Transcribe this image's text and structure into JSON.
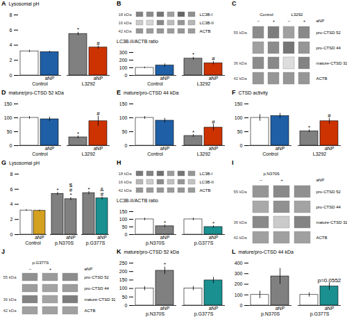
{
  "chart_data": [
    {
      "type": "bar",
      "title": "A",
      "ylabel": "Lysosomal pH",
      "categories": [
        "Control",
        "L3292"
      ],
      "series": [
        {
          "values": [
            3.2,
            5.5
          ],
          "errors": [
            0.15,
            0.22
          ],
          "colors": [
            "#ffffff",
            "#808080"
          ]
        },
        {
          "name": "aNP",
          "values": [
            3.1,
            3.7
          ],
          "errors": [
            0.12,
            0.22
          ],
          "colors": [
            "#1f5fa6",
            "#cc3300"
          ]
        }
      ],
      "ylim": [
        0,
        8
      ],
      "yticks": [
        0,
        2,
        4,
        6,
        8
      ],
      "annotations": [
        {
          "text": "*",
          "category": "L3292",
          "series": 0
        },
        {
          "text": "#",
          "category": "L3292",
          "series": 1
        }
      ]
    },
    {
      "type": "heatmap",
      "title": "B",
      "categories": [
        null,
        null,
        null,
        null,
        null,
        null
      ],
      "rows": [
        "LC3B-I",
        "LC3B-II",
        "ACTB"
      ],
      "row_sizes": [
        "18 kDa",
        "16 kDa",
        "42 kDa"
      ],
      "cells": [
        [
          0.65,
          0.6,
          0.72,
          0.5,
          0.8,
          0.58
        ],
        [
          0.28,
          0.22,
          0.62,
          0.35,
          0.55,
          0.38
        ],
        [
          0.55,
          0.52,
          0.55,
          0.52,
          0.55,
          0.52
        ]
      ],
      "zlim": [
        0,
        1
      ]
    },
    {
      "type": "bar",
      "ylabel": "LC3B-II/ACTB ratio",
      "categories": [
        "Control",
        "L3292"
      ],
      "series": [
        {
          "values": [
            100,
            220
          ],
          "errors": [
            10,
            18
          ],
          "colors": [
            "#ffffff",
            "#808080"
          ]
        },
        {
          "name": "aNP",
          "values": [
            130,
            160
          ],
          "errors": [
            22,
            22
          ],
          "colors": [
            "#1f5fa6",
            "#cc3300"
          ]
        }
      ],
      "ylim": [
        0,
        300
      ],
      "yticks": [
        0,
        100,
        200,
        300
      ],
      "annotations": [
        {
          "text": "*",
          "category": "L3292",
          "series": 0
        },
        {
          "text": "#",
          "category": "L3292",
          "series": 1
        }
      ]
    },
    {
      "type": "heatmap",
      "title": "C",
      "categories": [
        "–",
        "+",
        "–",
        "+"
      ],
      "xlabel": "aNP",
      "groups": [
        {
          "label": "Control",
          "lanes": 2
        },
        {
          "label": "L3292",
          "lanes": 2
        }
      ],
      "rows": [
        "pro-CTSD 52",
        "pro-CTSD 44",
        "mature-CTSD 32",
        "ACTB"
      ],
      "row_sizes": [
        "55 kDa",
        null,
        "36 kDa",
        "42 kDa"
      ],
      "cells": [
        [
          0.6,
          0.68,
          0.5,
          0.62
        ],
        [
          0.5,
          0.6,
          0.72,
          0.55
        ],
        [
          0.6,
          0.62,
          0.18,
          0.65
        ],
        [
          0.55,
          0.55,
          0.55,
          0.55
        ]
      ],
      "zlim": [
        0,
        1
      ]
    },
    {
      "type": "bar",
      "title": "D",
      "ylabel": "mature/pro-CTSD 52 kDa",
      "categories": [
        "Control",
        "L3292"
      ],
      "series": [
        {
          "values": [
            100,
            30
          ],
          "errors": [
            5,
            5
          ],
          "colors": [
            "#ffffff",
            "#808080"
          ]
        },
        {
          "name": "aNP",
          "values": [
            95,
            88
          ],
          "errors": [
            8,
            18
          ],
          "colors": [
            "#1f5fa6",
            "#cc3300"
          ]
        }
      ],
      "ylim": [
        0,
        150
      ],
      "yticks": [
        0,
        50,
        100,
        150
      ],
      "annotations": [
        {
          "text": "*",
          "category": "L3292",
          "series": 0
        },
        {
          "text": "#",
          "category": "L3292",
          "series": 1
        }
      ]
    },
    {
      "type": "bar",
      "title": "E",
      "ylabel": "mature/pro-CTSD 44 kDa",
      "categories": [
        "Control",
        "L3292"
      ],
      "series": [
        {
          "values": [
            100,
            35
          ],
          "errors": [
            5,
            5
          ],
          "colors": [
            "#ffffff",
            "#808080"
          ]
        },
        {
          "name": "aNP",
          "values": [
            90,
            65
          ],
          "errors": [
            8,
            12
          ],
          "colors": [
            "#1f5fa6",
            "#cc3300"
          ]
        }
      ],
      "ylim": [
        0,
        150
      ],
      "yticks": [
        0,
        50,
        100,
        150
      ],
      "annotations": [
        {
          "text": "*",
          "category": "L3292",
          "series": 0
        },
        {
          "text": "#",
          "category": "L3292",
          "series": 1
        }
      ]
    },
    {
      "type": "bar",
      "title": "F",
      "ylabel": "CTSD activity",
      "categories": [
        "Control",
        "L3292"
      ],
      "series": [
        {
          "values": [
            100,
            52
          ],
          "errors": [
            12,
            5
          ],
          "colors": [
            "#ffffff",
            "#808080"
          ]
        },
        {
          "name": "aNP",
          "values": [
            107,
            88
          ],
          "errors": [
            9,
            10
          ],
          "colors": [
            "#1f5fa6",
            "#cc3300"
          ]
        }
      ],
      "ylim": [
        0,
        150
      ],
      "yticks": [
        0,
        50,
        100,
        150
      ],
      "annotations": [
        {
          "text": "*",
          "category": "L3292",
          "series": 0
        },
        {
          "text": "#",
          "category": "L3292",
          "series": 1
        }
      ]
    },
    {
      "type": "bar",
      "title": "G",
      "ylabel": "Lysosomal pH",
      "categories": [
        "Control",
        "p.N370S",
        "p.G377S"
      ],
      "series": [
        {
          "values": [
            3.2,
            5.4,
            5.5
          ],
          "errors": [
            0.1,
            0.2,
            0.2
          ],
          "colors": [
            "#ffffff",
            "#808080",
            "#808080"
          ]
        },
        {
          "name": "aNP",
          "values": [
            3.15,
            4.7,
            4.8
          ],
          "errors": [
            0.1,
            0.2,
            0.2
          ],
          "colors": [
            "#d4a020",
            "#808080",
            "#1a9090"
          ]
        }
      ],
      "ylim": [
        0,
        8
      ],
      "yticks": [
        0,
        2,
        4,
        6,
        8
      ],
      "annotations": [
        {
          "text": "*",
          "category": "p.N370S",
          "series": 0
        },
        {
          "text": "*",
          "category": "p.N370S",
          "series": 1
        },
        {
          "text": "#",
          "category": "p.N370S",
          "series": 1
        },
        {
          "text": "$",
          "category": "p.N370S",
          "series": 1
        },
        {
          "text": "*",
          "category": "p.G377S",
          "series": 0
        },
        {
          "text": "#",
          "category": "p.G377S",
          "series": 1
        },
        {
          "text": "&",
          "category": "p.G377S",
          "series": 1
        }
      ]
    },
    {
      "type": "heatmap",
      "title": "H",
      "categories": [
        null,
        null,
        null,
        null,
        null,
        null
      ],
      "rows": [
        "LC3B-I",
        "LC3B-II",
        "ACTB"
      ],
      "row_sizes": [
        "18 kDa",
        "16 kDa",
        "42 kDa"
      ],
      "cells": [
        [
          0.7,
          0.65,
          0.75,
          0.52,
          0.72,
          0.55
        ],
        [
          0.38,
          0.28,
          0.6,
          0.33,
          0.55,
          0.32
        ],
        [
          0.55,
          0.53,
          0.55,
          0.53,
          0.55,
          0.53
        ]
      ],
      "zlim": [
        0,
        1
      ]
    },
    {
      "type": "bar",
      "ylabel": "LC3B-II/ACTB ratio",
      "categories": [
        "p.N370S",
        "p.G377S"
      ],
      "series": [
        {
          "values": [
            100,
            100
          ],
          "errors": [
            8,
            8
          ],
          "colors": [
            "#ffffff",
            "#ffffff"
          ]
        },
        {
          "name": "aNP",
          "values": [
            55,
            50
          ],
          "errors": [
            8,
            8
          ],
          "colors": [
            "#808080",
            "#1a9090"
          ]
        }
      ],
      "ylim": [
        0,
        150
      ],
      "yticks": [
        0,
        50,
        100,
        150
      ],
      "annotations": [
        {
          "text": "*",
          "category": "p.N370S",
          "series": 1
        },
        {
          "text": "*",
          "category": "p.G377S",
          "series": 1
        }
      ]
    },
    {
      "type": "heatmap",
      "title": "I",
      "categories": [
        "–",
        "+",
        null
      ],
      "xlabel": "aNP",
      "groups": [
        {
          "label": "p.N370S",
          "lanes": 2
        }
      ],
      "rows": [
        "pro-CTSD 52",
        "pro-CTSD 44",
        "mature-CTSD 32",
        "ACTB"
      ],
      "row_sizes": [
        "55 kDa",
        null,
        "36 kDa",
        "42 kDa"
      ],
      "cells": [
        [
          0.55,
          0.62,
          0.58
        ],
        [
          0.45,
          0.58,
          0.48
        ],
        [
          0.62,
          0.28,
          0.65
        ],
        [
          0.5,
          0.5,
          0.5
        ]
      ],
      "zlim": [
        0,
        1
      ]
    },
    {
      "type": "heatmap",
      "title": "J",
      "categories": [
        "–",
        "+",
        null
      ],
      "xlabel": "aNP",
      "groups": [
        {
          "label": "p.G377S",
          "lanes": 2
        }
      ],
      "rows": [
        "pro-CTSD 52",
        "pro-CTSD 44",
        "mature-CTSD 32",
        "ACTB"
      ],
      "row_sizes": [
        "55 kDa",
        null,
        "36 kDa",
        "42 kDa"
      ],
      "cells": [
        [
          0.58,
          0.53,
          0.6
        ],
        [
          0.52,
          0.48,
          0.52
        ],
        [
          0.65,
          0.48,
          0.68
        ],
        [
          0.5,
          0.5,
          0.5
        ]
      ],
      "zlim": [
        0,
        1
      ]
    },
    {
      "type": "bar",
      "title": "K",
      "ylabel": "mature/pro-CTSD 52 kDa",
      "categories": [
        "p.N370S",
        "p.G377S"
      ],
      "series": [
        {
          "values": [
            100,
            100
          ],
          "errors": [
            12,
            12
          ],
          "colors": [
            "#ffffff",
            "#ffffff"
          ]
        },
        {
          "name": "aNP",
          "values": [
            205,
            148
          ],
          "errors": [
            22,
            18
          ],
          "colors": [
            "#808080",
            "#1a9090"
          ]
        }
      ],
      "ylim": [
        0,
        250
      ],
      "yticks": [
        0,
        50,
        100,
        150,
        200,
        250
      ],
      "annotations": [
        {
          "text": "*",
          "category": "p.N370S",
          "series": 1
        }
      ]
    },
    {
      "type": "bar",
      "title": "L",
      "ylabel": "mature/pro-CTSD 44 kDa",
      "categories": [
        "p.N370S",
        "p.G377S"
      ],
      "series": [
        {
          "values": [
            100,
            100
          ],
          "errors": [
            35,
            20
          ],
          "colors": [
            "#ffffff",
            "#ffffff"
          ]
        },
        {
          "name": "aNP",
          "values": [
            275,
            180
          ],
          "errors": [
            75,
            35
          ],
          "colors": [
            "#808080",
            "#1a9090"
          ]
        }
      ],
      "ylim": [
        0,
        400
      ],
      "yticks": [
        0,
        100,
        200,
        300,
        400
      ],
      "annotations": [
        {
          "text": "p=0.0552",
          "category": "p.G377S",
          "series": 1
        }
      ]
    }
  ]
}
